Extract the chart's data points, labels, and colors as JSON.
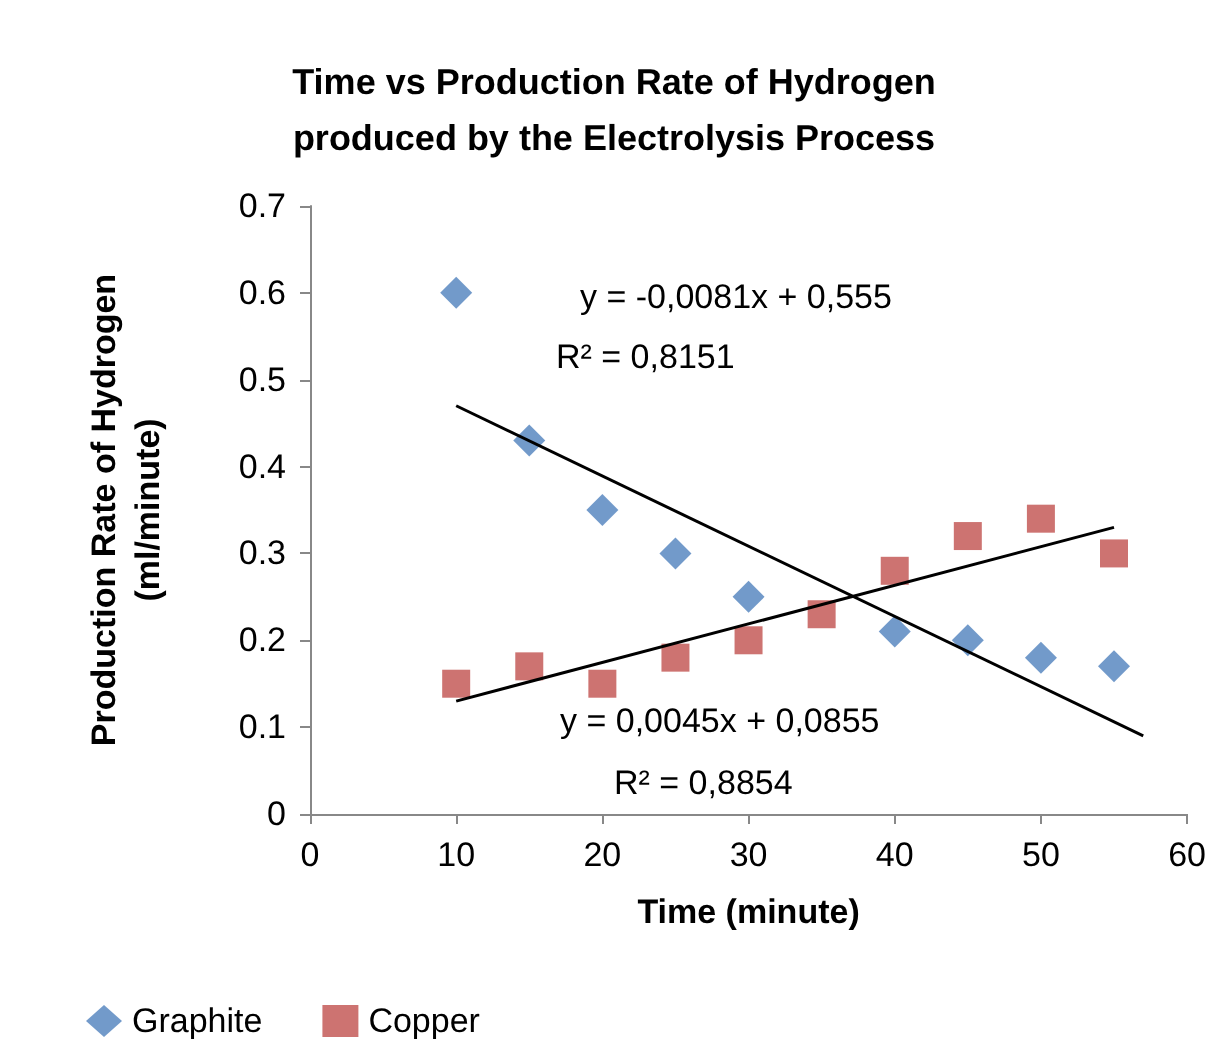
{
  "chart_data": {
    "type": "scatter",
    "title": "Time vs Production Rate of Hydrogen\nproduced by the Electrolysis Process",
    "xlabel": "Time (minute)",
    "ylabel": "Production Rate of Hydrogen\n(ml/minute)",
    "x": [
      10,
      15,
      20,
      25,
      30,
      35,
      40,
      45,
      50,
      55
    ],
    "series": [
      {
        "name": "Graphite",
        "color": "#4f81bd",
        "marker": "diamond",
        "values": [
          0.6,
          0.43,
          0.35,
          0.3,
          0.25,
          null,
          0.21,
          0.2,
          0.18,
          0.17
        ]
      },
      {
        "name": "Copper",
        "color": "#c0504d",
        "marker": "square",
        "values": [
          0.15,
          0.17,
          0.15,
          0.18,
          0.2,
          0.23,
          0.28,
          0.32,
          0.34,
          0.3
        ]
      },
      {
        "type": "line",
        "color": "#000000",
        "x": [
          10,
          57
        ],
        "values": [
          0.47,
          0.09
        ]
      },
      {
        "type": "line",
        "color": "#000000",
        "x": [
          10,
          55
        ],
        "values": [
          0.13,
          0.33
        ]
      }
    ],
    "annotations": [
      "y = -0,0081x + 0,555",
      "R² = 0,8151",
      "y = 0,0045x + 0,0855",
      "R² = 0,8854"
    ],
    "xlim": [
      0,
      60
    ],
    "xticks": [
      0,
      10,
      20,
      30,
      40,
      50,
      60
    ],
    "ylim": [
      0,
      0.7
    ],
    "yticks": [
      0,
      0.1,
      0.2,
      0.3,
      0.4,
      0.5,
      0.6,
      0.7
    ],
    "grid": false,
    "legend": "bottom left"
  }
}
